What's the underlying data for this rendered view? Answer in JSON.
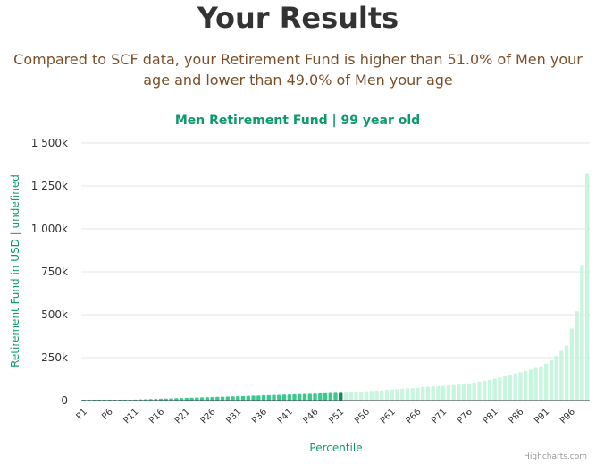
{
  "page": {
    "heading": "Your Results",
    "subtitle": "Compared to SCF data, your Retirement Fund is higher than 51.0% of Men your age and lower than 49.0% of Men your age",
    "credits": "Highcharts.com"
  },
  "colors": {
    "below": "#3cc98f",
    "highlight": "#0d8a5e",
    "above": "#c7f5de",
    "accent": "#0d9a6b"
  },
  "chart_data": {
    "type": "bar",
    "title": "Men Retirement Fund | 99 year old",
    "xlabel": "Percentile",
    "ylabel": "Retirement Fund in USD | undefined",
    "ylim": [
      0,
      1500000
    ],
    "yticks": [
      {
        "value": 0,
        "label": "0"
      },
      {
        "value": 250000,
        "label": "250k"
      },
      {
        "value": 500000,
        "label": "500k"
      },
      {
        "value": 750000,
        "label": "750k"
      },
      {
        "value": 1000000,
        "label": "1 000k"
      },
      {
        "value": 1250000,
        "label": "1 250k"
      },
      {
        "value": 1500000,
        "label": "1 500k"
      }
    ],
    "xtick_labels": [
      "P1",
      "P6",
      "P11",
      "P16",
      "P21",
      "P26",
      "P31",
      "P36",
      "P41",
      "P46",
      "P51",
      "P56",
      "P61",
      "P66",
      "P71",
      "P76",
      "P81",
      "P86",
      "P91",
      "P96"
    ],
    "highlight_index": 50,
    "categories": [
      "P1",
      "P2",
      "P3",
      "P4",
      "P5",
      "P6",
      "P7",
      "P8",
      "P9",
      "P10",
      "P11",
      "P12",
      "P13",
      "P14",
      "P15",
      "P16",
      "P17",
      "P18",
      "P19",
      "P20",
      "P21",
      "P22",
      "P23",
      "P24",
      "P25",
      "P26",
      "P27",
      "P28",
      "P29",
      "P30",
      "P31",
      "P32",
      "P33",
      "P34",
      "P35",
      "P36",
      "P37",
      "P38",
      "P39",
      "P40",
      "P41",
      "P42",
      "P43",
      "P44",
      "P45",
      "P46",
      "P47",
      "P48",
      "P49",
      "P50",
      "P51",
      "P52",
      "P53",
      "P54",
      "P55",
      "P56",
      "P57",
      "P58",
      "P59",
      "P60",
      "P61",
      "P62",
      "P63",
      "P64",
      "P65",
      "P66",
      "P67",
      "P68",
      "P69",
      "P70",
      "P71",
      "P72",
      "P73",
      "P74",
      "P75",
      "P76",
      "P77",
      "P78",
      "P79",
      "P80",
      "P81",
      "P82",
      "P83",
      "P84",
      "P85",
      "P86",
      "P87",
      "P88",
      "P89",
      "P90",
      "P91",
      "P92",
      "P93",
      "P94",
      "P95",
      "P96",
      "P97",
      "P98",
      "P99"
    ],
    "values": [
      0,
      0,
      0,
      0,
      0,
      1000,
      2000,
      3000,
      4000,
      5000,
      6000,
      7000,
      8000,
      9000,
      10000,
      11000,
      12000,
      13000,
      14000,
      15000,
      16000,
      17000,
      18000,
      19000,
      20000,
      21000,
      22000,
      23000,
      24000,
      25000,
      26000,
      27000,
      28000,
      29000,
      30000,
      31000,
      32000,
      33000,
      34000,
      35000,
      36000,
      37000,
      38000,
      39000,
      40000,
      41000,
      42000,
      43000,
      44000,
      45000,
      45000,
      46000,
      48000,
      50000,
      52000,
      54000,
      56000,
      58000,
      60000,
      62000,
      64000,
      66000,
      68000,
      70000,
      72000,
      75000,
      78000,
      80000,
      82000,
      84000,
      86000,
      88000,
      90000,
      93000,
      96000,
      100000,
      105000,
      110000,
      115000,
      120000,
      128000,
      135000,
      142000,
      150000,
      158000,
      165000,
      173000,
      180000,
      190000,
      200000,
      215000,
      235000,
      260000,
      290000,
      320000,
      420000,
      520000,
      790000,
      1320000
    ]
  }
}
